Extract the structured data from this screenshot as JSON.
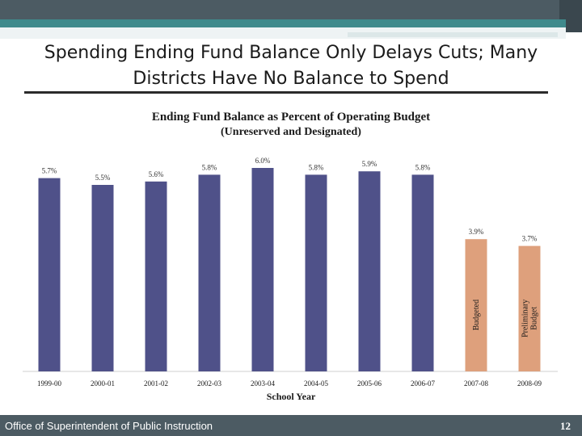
{
  "slide": {
    "title_line1": "Spending Ending Fund Balance Only Delays Cuts; Many",
    "title_line2": "Districts Have No Balance to Spend",
    "footer": "Office of Superintendent of Public Instruction",
    "page_number": "12"
  },
  "colors": {
    "actual_bar": "#4f5189",
    "budget_bar": "#dea07c",
    "header_bar": "#4c5b63",
    "accent_bar": "#3f8a8c"
  },
  "chart_data": {
    "type": "bar",
    "title": "Ending Fund Balance as Percent of Operating Budget",
    "subtitle": "(Unreserved and Designated)",
    "xlabel": "School Year",
    "ylabel": "",
    "ylim": [
      0,
      6.0
    ],
    "grid": false,
    "categories": [
      "1999-00",
      "2000-01",
      "2001-02",
      "2002-03",
      "2003-04",
      "2004-05",
      "2005-06",
      "2006-07",
      "2007-08",
      "2008-09"
    ],
    "values": [
      5.7,
      5.5,
      5.6,
      5.8,
      6.0,
      5.8,
      5.9,
      5.8,
      3.9,
      3.7
    ],
    "value_labels": [
      "5.7%",
      "5.5%",
      "5.6%",
      "5.8%",
      "6.0%",
      "5.8%",
      "5.9%",
      "5.8%",
      "3.9%",
      "3.7%"
    ],
    "bar_status": [
      "actual",
      "actual",
      "actual",
      "actual",
      "actual",
      "actual",
      "actual",
      "actual",
      "budget",
      "budget"
    ],
    "bar_annotations": [
      "",
      "",
      "",
      "",
      "",
      "",
      "",
      "",
      "Budgeted",
      "Preliminary Budget"
    ]
  }
}
